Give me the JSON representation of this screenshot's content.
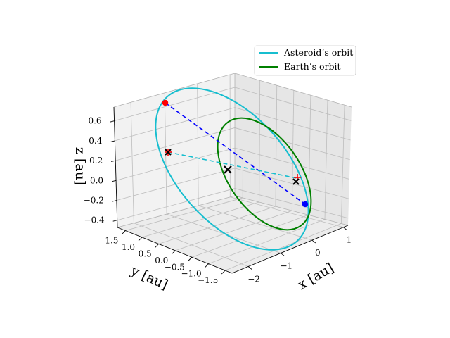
{
  "chart_data": {
    "type": "line3d",
    "title": "",
    "axes": {
      "x": {
        "label": "x [au]",
        "ticks": [
          "−2",
          "−1",
          "0",
          "1"
        ],
        "range": [
          -2.6,
          1.3
        ]
      },
      "y": {
        "label": "y [au]",
        "ticks": [
          "1.5",
          "1.0",
          "0.5",
          "0.0",
          "−0.5",
          "−1.0",
          "−1.5"
        ],
        "range": [
          -1.6,
          1.8
        ]
      },
      "z": {
        "label": "z [au]",
        "ticks": [
          "0.6",
          "0.4",
          "0.2",
          "0.0",
          "−0.2",
          "−0.4"
        ],
        "range": [
          -0.45,
          0.75
        ]
      }
    },
    "grid": true,
    "legend": {
      "position": "top-right",
      "entries": [
        {
          "label": "Asteroid’s orbit",
          "color": "#17becf"
        },
        {
          "label": "Earth’s orbit",
          "color": "#008000"
        }
      ]
    },
    "series": [
      {
        "name": "Asteroid’s orbit",
        "kind": "ellipse",
        "color": "#17becf",
        "semi_major_axis": 1.9,
        "eccentricity": 0.35,
        "inclination_deg": 25
      },
      {
        "name": "Earth’s orbit",
        "kind": "circle",
        "color": "#008000",
        "radius": 1.0,
        "inclination_deg": 0
      }
    ],
    "markers": [
      {
        "kind": "point",
        "color": "#ff0000",
        "shape": "circle",
        "description": "asteroid aphelion"
      },
      {
        "kind": "point",
        "color": "#0000ff",
        "shape": "circle",
        "description": "asteroid perihelion"
      },
      {
        "kind": "cross",
        "color": "#000000",
        "description": "focus / Sun"
      },
      {
        "kind": "cross",
        "color": "#000000",
        "description": "ellipse node"
      },
      {
        "kind": "cross",
        "color": "#000000",
        "description": "ellipse node"
      },
      {
        "kind": "plus",
        "color": "#ff0000",
        "description": "node"
      },
      {
        "kind": "plus",
        "color": "#ff0000",
        "description": "node"
      }
    ],
    "lines": [
      {
        "from": "aphelion",
        "to": "perihelion",
        "style": "dashed",
        "color": "#0000ff"
      },
      {
        "from": "node",
        "to": "node",
        "style": "dashed",
        "color": "#17becf"
      }
    ]
  }
}
